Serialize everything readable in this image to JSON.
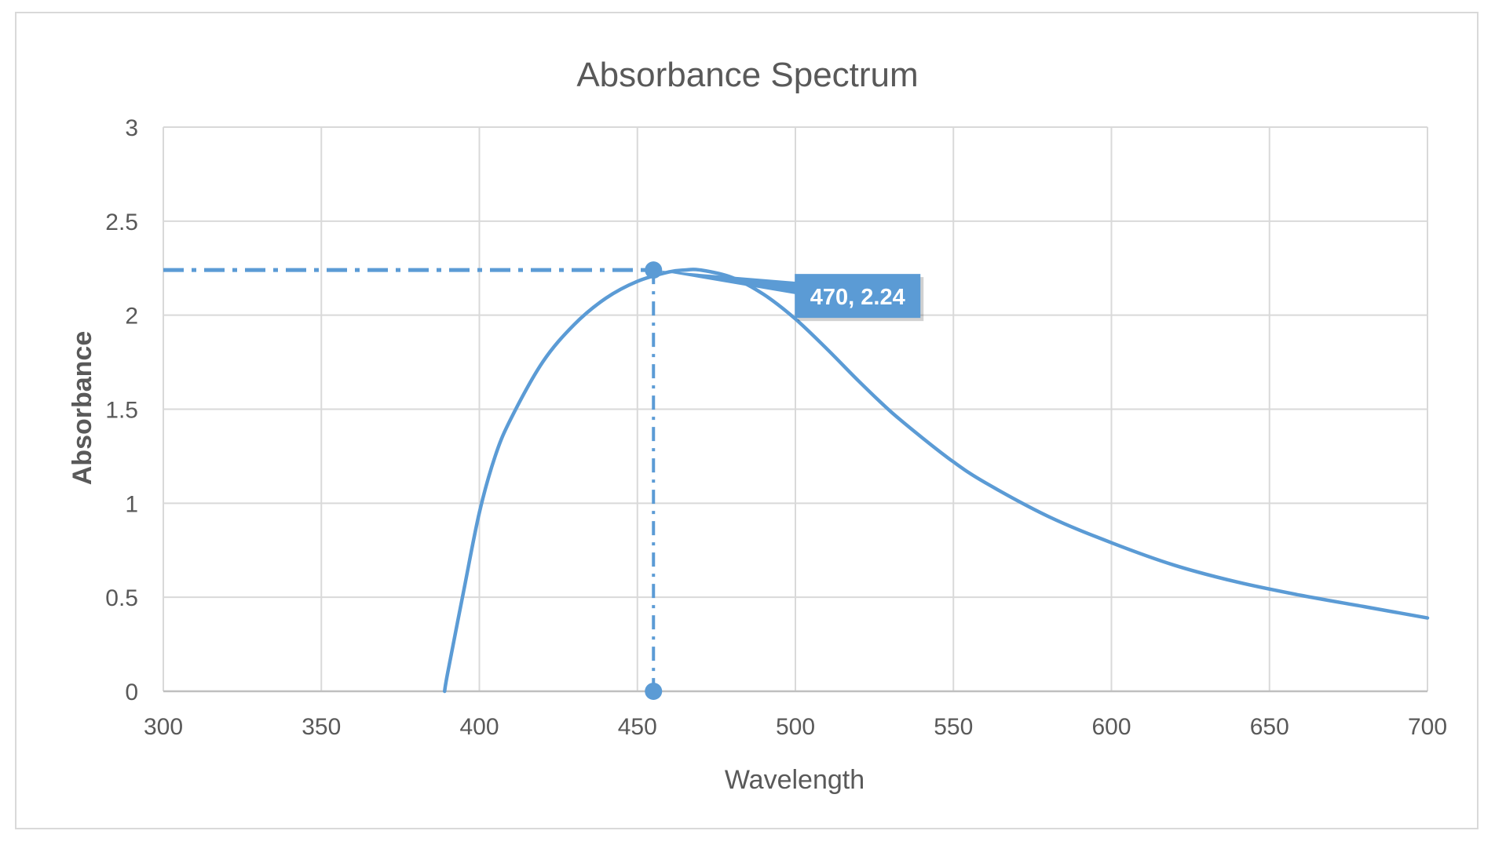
{
  "chart_data": {
    "type": "line",
    "title": "Absorbance Spectrum",
    "xlabel": "Wavelength",
    "ylabel": "Absorbance",
    "xlim": [
      300,
      700
    ],
    "ylim": [
      0,
      3
    ],
    "xticks": [
      300,
      350,
      400,
      450,
      500,
      550,
      600,
      650,
      700
    ],
    "yticks": [
      0,
      0.5,
      1,
      1.5,
      2,
      2.5,
      3
    ],
    "grid": true,
    "series": [
      {
        "name": "Absorbance",
        "color": "#5b9bd5",
        "x": [
          389,
          390,
          395,
          400,
          405,
          410,
          420,
          430,
          440,
          450,
          460,
          465,
          470,
          480,
          490,
          500,
          510,
          520,
          530,
          540,
          550,
          560,
          580,
          600,
          620,
          640,
          660,
          680,
          700
        ],
        "y": [
          0,
          0.1,
          0.53,
          0.95,
          1.25,
          1.45,
          1.75,
          1.95,
          2.09,
          2.18,
          2.23,
          2.24,
          2.24,
          2.2,
          2.11,
          1.98,
          1.82,
          1.65,
          1.49,
          1.35,
          1.22,
          1.11,
          0.93,
          0.79,
          0.67,
          0.58,
          0.51,
          0.45,
          0.39
        ]
      }
    ],
    "peak": {
      "x": 470,
      "y": 2.24,
      "label": "470, 2.24"
    },
    "annotation_color": "#5b9bd5"
  }
}
